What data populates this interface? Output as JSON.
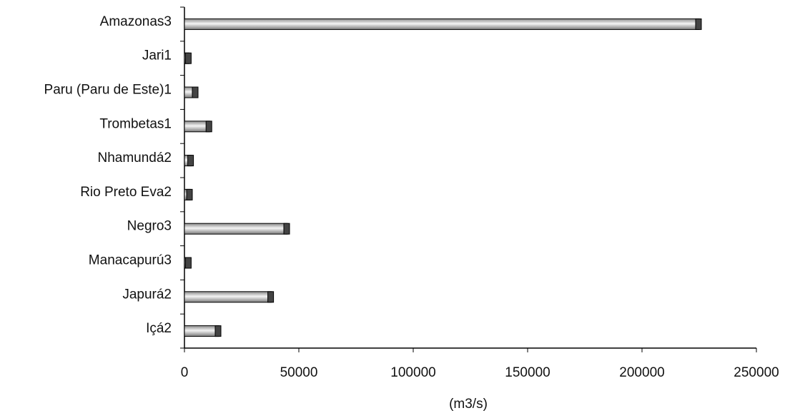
{
  "chart_data": {
    "type": "hbar",
    "categories": [
      "Amazonas3",
      "Jari1",
      "Paru (Paru de Este)1",
      "Trombetas1",
      "Nhamundá2",
      "Rio Preto Eva2",
      "Negro3",
      "Manacapurú3",
      "Japurá2",
      "Içá2"
    ],
    "values": [
      225000,
      2000,
      5000,
      11000,
      3000,
      2500,
      45000,
      2000,
      38000,
      15000
    ],
    "xlabel": "(m3/s)",
    "xlim": [
      0,
      250000
    ],
    "xticks": [
      0,
      50000,
      100000,
      150000,
      200000,
      250000
    ],
    "color": "#d9d9d9",
    "grid": false
  }
}
